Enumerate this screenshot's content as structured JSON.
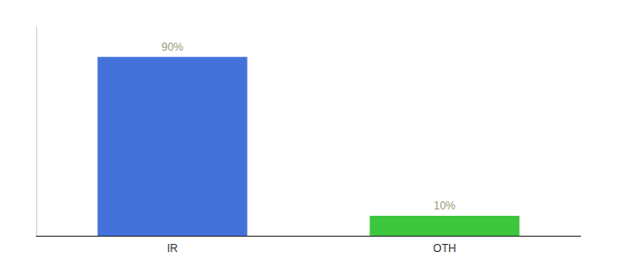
{
  "chart_data": {
    "type": "bar",
    "categories": [
      "IR",
      "OTH"
    ],
    "values": [
      90,
      10
    ],
    "value_labels": [
      "90%",
      "10%"
    ],
    "colors": [
      "#4472DB",
      "#3DC63D"
    ],
    "ylim": [
      0,
      105
    ],
    "data_labels": true,
    "tick_labels": "x",
    "grid": false
  }
}
